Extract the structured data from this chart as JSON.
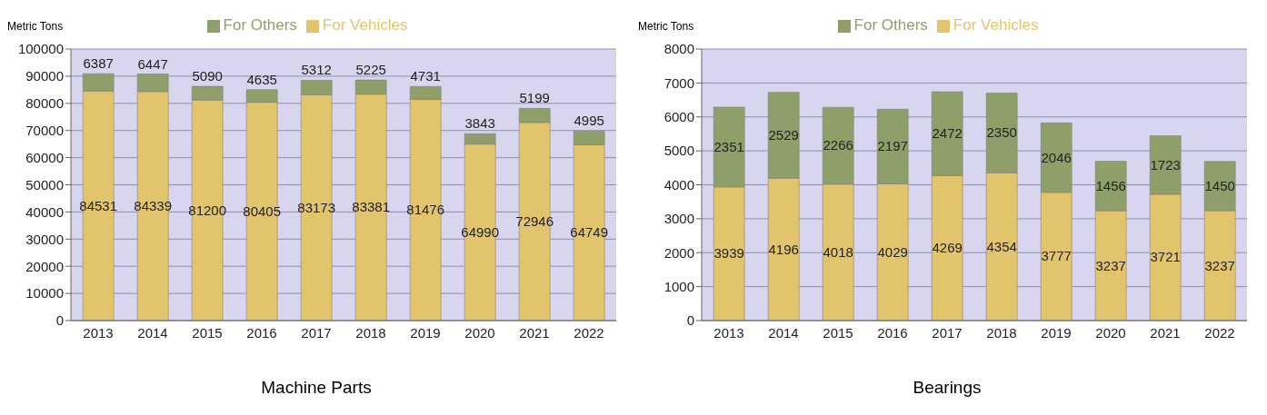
{
  "chart_data": [
    {
      "type": "bar",
      "title": "Machine Parts",
      "ylabel": "Metric Tons",
      "stacked": true,
      "legend": "top",
      "grid": "y",
      "data_labels": true,
      "categories": [
        "2013",
        "2014",
        "2015",
        "2016",
        "2017",
        "2018",
        "2019",
        "2020",
        "2021",
        "2022"
      ],
      "series": [
        {
          "name": "For Vehicles",
          "color": "#e2c46c",
          "values": [
            84531,
            84339,
            81200,
            80405,
            83173,
            83381,
            81476,
            64990,
            72946,
            64749
          ]
        },
        {
          "name": "For Others",
          "color": "#8e9f6a",
          "values": [
            6387,
            6447,
            5090,
            4635,
            5312,
            5225,
            4731,
            3843,
            5199,
            4995
          ]
        }
      ],
      "ylim": [
        0,
        100000
      ],
      "yticks": [
        0,
        10000,
        20000,
        30000,
        40000,
        50000,
        60000,
        70000,
        80000,
        90000,
        100000
      ]
    },
    {
      "type": "bar",
      "title": "Bearings",
      "ylabel": "Metric Tons",
      "stacked": true,
      "legend": "top",
      "grid": "y",
      "data_labels": true,
      "categories": [
        "2013",
        "2014",
        "2015",
        "2016",
        "2017",
        "2018",
        "2019",
        "2020",
        "2021",
        "2022"
      ],
      "series": [
        {
          "name": "For Vehicles",
          "color": "#e2c46c",
          "values": [
            3939,
            4196,
            4018,
            4029,
            4269,
            4354,
            3777,
            3237,
            3721,
            3237
          ]
        },
        {
          "name": "For Others",
          "color": "#8e9f6a",
          "values": [
            2351,
            2529,
            2266,
            2197,
            2472,
            2350,
            2046,
            1456,
            1723,
            1450
          ]
        }
      ],
      "ylim": [
        0,
        8000
      ],
      "yticks": [
        0,
        1000,
        2000,
        3000,
        4000,
        5000,
        6000,
        7000,
        8000
      ]
    }
  ]
}
